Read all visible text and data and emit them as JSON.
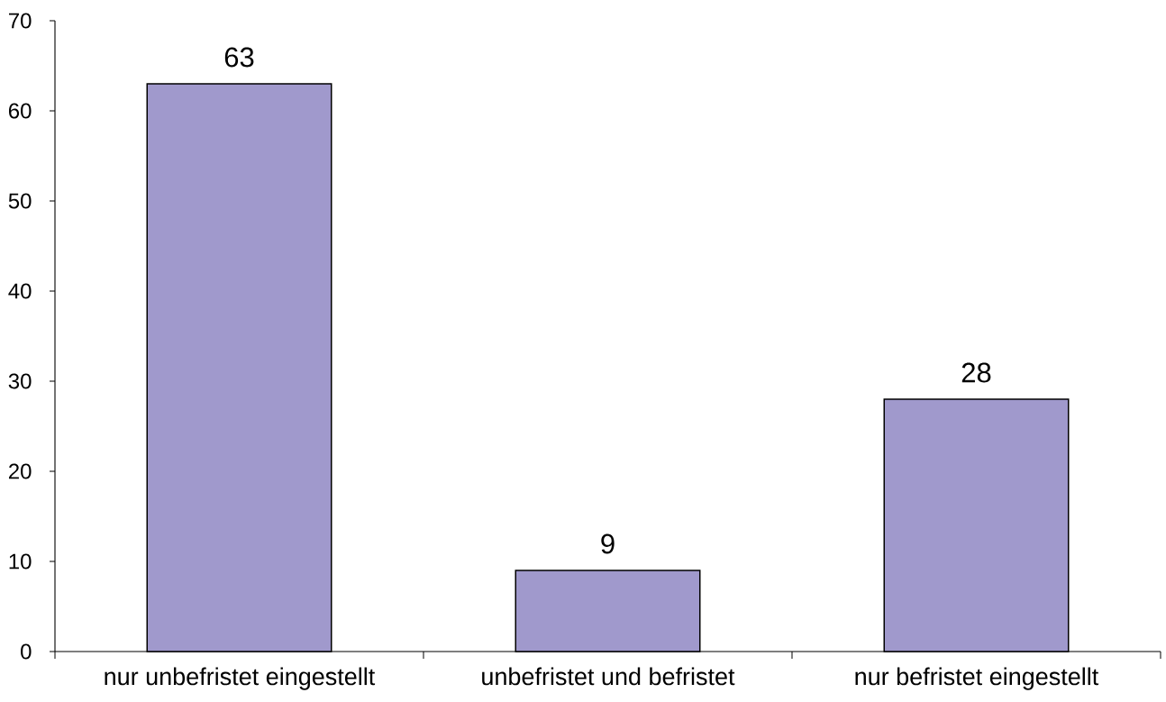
{
  "chart_data": {
    "type": "bar",
    "categories": [
      "nur unbefristet eingestellt",
      "unbefristet und befristet",
      "nur befristet eingestellt"
    ],
    "values": [
      63,
      9,
      28
    ],
    "color": "#a099cc",
    "data_labels": true,
    "ylim": [
      0,
      70
    ],
    "yticks": [
      0,
      10,
      20,
      30,
      40,
      50,
      60,
      70
    ]
  }
}
